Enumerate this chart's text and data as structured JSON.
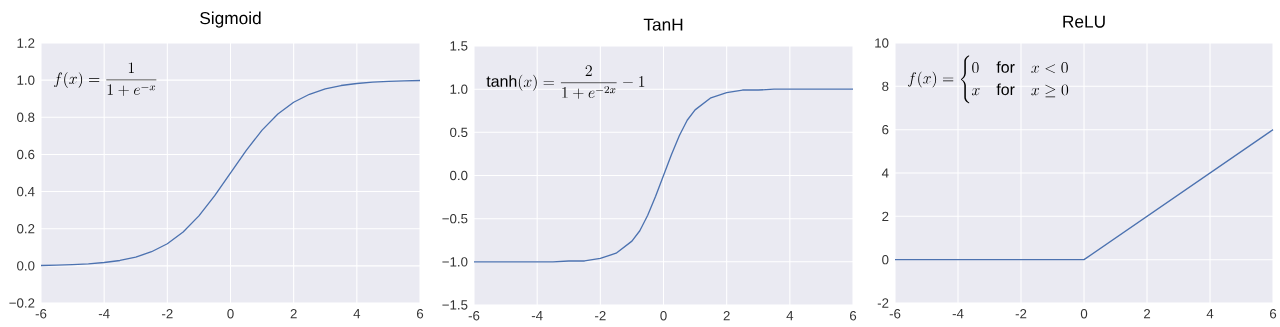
{
  "chart_data": [
    {
      "type": "line",
      "title": "Sigmoid",
      "annotations": [
        "f(x) = \\frac{1}{1+e^{-x}}"
      ],
      "grid": true,
      "xlim": [
        -6,
        6
      ],
      "ylim": [
        -0.2,
        1.2
      ],
      "xticks": [
        -6,
        -4,
        -2,
        0,
        2,
        4,
        6
      ],
      "yticks": [
        {
          "value": -0.2,
          "label": "−0.2"
        },
        {
          "value": 0,
          "label": "0.0"
        },
        {
          "value": 0.2,
          "label": "0.2"
        },
        {
          "value": 0.4,
          "label": "0.4"
        },
        {
          "value": 0.6,
          "label": "0.6"
        },
        {
          "value": 0.8,
          "label": "0.8"
        },
        {
          "value": 1,
          "label": "1.0"
        },
        {
          "value": 1.2,
          "label": "1.2"
        }
      ],
      "x": [
        -6,
        -5.5,
        -5,
        -4.5,
        -4,
        -3.5,
        -3,
        -2.5,
        -2,
        -1.5,
        -1,
        -0.5,
        0,
        0.5,
        1,
        1.5,
        2,
        2.5,
        3,
        3.5,
        4,
        4.5,
        5,
        5.5,
        6
      ],
      "series": [
        {
          "color": "#4c72b0",
          "values": [
            0.002,
            0.004,
            0.007,
            0.011,
            0.018,
            0.029,
            0.047,
            0.076,
            0.119,
            0.182,
            0.269,
            0.378,
            0.5,
            0.622,
            0.731,
            0.818,
            0.881,
            0.924,
            0.953,
            0.971,
            0.982,
            0.989,
            0.993,
            0.996,
            0.998
          ]
        }
      ]
    },
    {
      "type": "line",
      "title": "TanH",
      "annotations": [
        "\\tanh(x) = \\frac{2}{1+e^{-2x}} - 1"
      ],
      "grid": true,
      "xlim": [
        -6,
        6
      ],
      "ylim": [
        -1.5,
        1.5
      ],
      "xticks": [
        -6,
        -4,
        -2,
        0,
        2,
        4,
        6
      ],
      "yticks": [
        {
          "value": -1.5,
          "label": "−1.5"
        },
        {
          "value": -1,
          "label": "−1.0"
        },
        {
          "value": -0.5,
          "label": "−0.5"
        },
        {
          "value": 0,
          "label": "0.0"
        },
        {
          "value": 0.5,
          "label": "0.5"
        },
        {
          "value": 1,
          "label": "1.0"
        },
        {
          "value": 1.5,
          "label": "1.5"
        }
      ],
      "x": [
        -6,
        -5,
        -4,
        -3.5,
        -3,
        -2.5,
        -2,
        -1.5,
        -1,
        -0.75,
        -0.5,
        -0.25,
        0,
        0.25,
        0.5,
        0.75,
        1,
        1.5,
        2,
        2.5,
        3,
        3.5,
        4,
        5,
        6
      ],
      "series": [
        {
          "color": "#4c72b0",
          "values": [
            -1.0,
            -1.0,
            -1.0,
            -1.0,
            -0.99,
            -0.99,
            -0.96,
            -0.9,
            -0.76,
            -0.64,
            -0.46,
            -0.24,
            0,
            0.24,
            0.46,
            0.64,
            0.76,
            0.9,
            0.96,
            0.99,
            0.99,
            1.0,
            1.0,
            1.0,
            1.0
          ]
        }
      ]
    },
    {
      "type": "line",
      "title": "ReLU",
      "annotations": [
        "f(x) = \\begin{cases} 0 & \\mathrm{for} \\quad x < 0 \\\\ x & \\mathrm{for} \\quad x \\geq 0 \\end{cases}"
      ],
      "grid": true,
      "xlim": [
        -6,
        6
      ],
      "ylim": [
        -2,
        10
      ],
      "xticks": [
        -6,
        -4,
        -2,
        0,
        2,
        4,
        6
      ],
      "yticks": [
        -2,
        0,
        2,
        4,
        6,
        8,
        10
      ],
      "x": [
        -6,
        0,
        6
      ],
      "series": [
        {
          "color": "#4c72b0",
          "values": [
            0,
            0,
            6
          ]
        }
      ]
    }
  ]
}
